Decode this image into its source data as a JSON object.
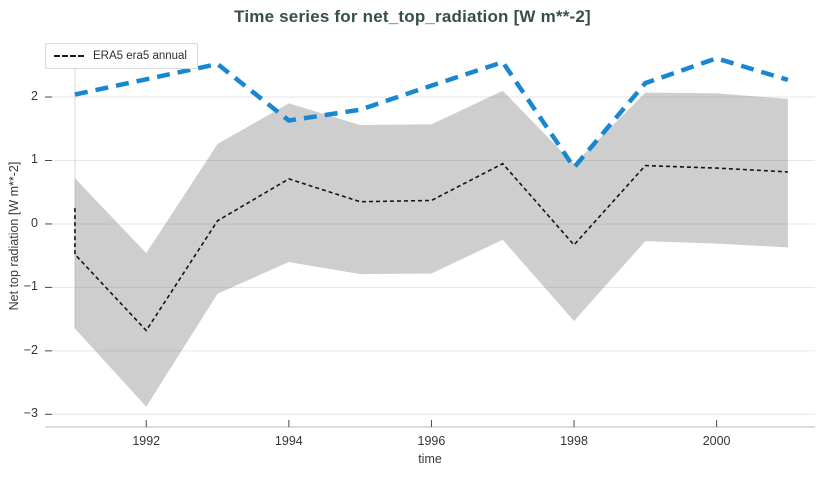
{
  "title": {
    "text": "Time series for net_top_radiation [W m**-2]",
    "color": "#35504c"
  },
  "legend": {
    "items": [
      {
        "label": "ERA5 era5 annual",
        "sample": "black-dashed-line"
      }
    ]
  },
  "axes": {
    "x": {
      "label": "time",
      "ticks": [
        1992,
        1994,
        1996,
        1998,
        2000
      ],
      "range": [
        1990.58,
        2001.38
      ]
    },
    "y": {
      "label": "Net top radiation [W m**-2]",
      "ticks": [
        2,
        1,
        0,
        -1,
        -2,
        -3
      ],
      "range": [
        -3.2,
        2.82
      ]
    }
  },
  "chart_data": {
    "type": "line",
    "title": "Time series for net_top_radiation [W m**-2]",
    "xlabel": "time",
    "ylabel": "Net top radiation [W m**-2]",
    "xlim": [
      1990.58,
      2001.38
    ],
    "ylim": [
      -3.2,
      2.82
    ],
    "grid": "horizontal",
    "legend_position": "top-left-inside",
    "annotations": {
      "vertical_guide_year": 1991
    },
    "series": [
      {
        "name": "ERA5 era5 annual",
        "kind": "line",
        "style": "dashed",
        "color": "#141414",
        "width": 1.6,
        "dash": "4 3",
        "in_legend": true,
        "points": [
          [
            1991,
            0.25
          ],
          [
            1991,
            -0.48
          ],
          [
            1992,
            -1.68
          ],
          [
            1993,
            0.05
          ],
          [
            1994,
            0.71
          ],
          [
            1995,
            0.35
          ],
          [
            1996,
            0.37
          ],
          [
            1997,
            0.95
          ],
          [
            1998,
            -0.33
          ],
          [
            1999,
            0.92
          ],
          [
            2000,
            0.88
          ],
          [
            2001,
            0.82
          ]
        ]
      },
      {
        "name": "reference series (blue)",
        "kind": "line",
        "style": "dashed",
        "color": "#1787d3",
        "width": 4.5,
        "dash": "13 8",
        "in_legend": false,
        "points": [
          [
            1991,
            2.04
          ],
          [
            1992,
            2.28
          ],
          [
            1993,
            2.52
          ],
          [
            1994,
            1.63
          ],
          [
            1995,
            1.8
          ],
          [
            1996,
            2.18
          ],
          [
            1997,
            2.55
          ],
          [
            1998,
            0.89
          ],
          [
            1999,
            2.22
          ],
          [
            2000,
            2.61
          ],
          [
            2001,
            2.27
          ]
        ]
      },
      {
        "name": "ERA5 uncertainty band",
        "kind": "band",
        "color": "#7d7d7d",
        "opacity": 0.38,
        "in_legend": false,
        "upper": [
          [
            1991,
            0.72
          ],
          [
            1992,
            -0.46
          ],
          [
            1993,
            1.26
          ],
          [
            1994,
            1.9
          ],
          [
            1995,
            1.56
          ],
          [
            1996,
            1.57
          ],
          [
            1997,
            2.1
          ],
          [
            1998,
            0.94
          ],
          [
            1999,
            2.07
          ],
          [
            2000,
            2.06
          ],
          [
            2001,
            1.97
          ]
        ],
        "lower": [
          [
            1991,
            -1.65
          ],
          [
            1992,
            -2.88
          ],
          [
            1993,
            -1.1
          ],
          [
            1994,
            -0.6
          ],
          [
            1995,
            -0.79
          ],
          [
            1996,
            -0.78
          ],
          [
            1997,
            -0.25
          ],
          [
            1998,
            -1.53
          ],
          [
            1999,
            -0.27
          ],
          [
            2000,
            -0.31
          ],
          [
            2001,
            -0.37
          ]
        ]
      }
    ],
    "colors": {
      "grid": "#e6e6e6",
      "axis_line": "#c8c8c8",
      "tick_mark": "#4a4a4a",
      "tick_text": "#353535",
      "guide_line": "#dedede"
    }
  }
}
